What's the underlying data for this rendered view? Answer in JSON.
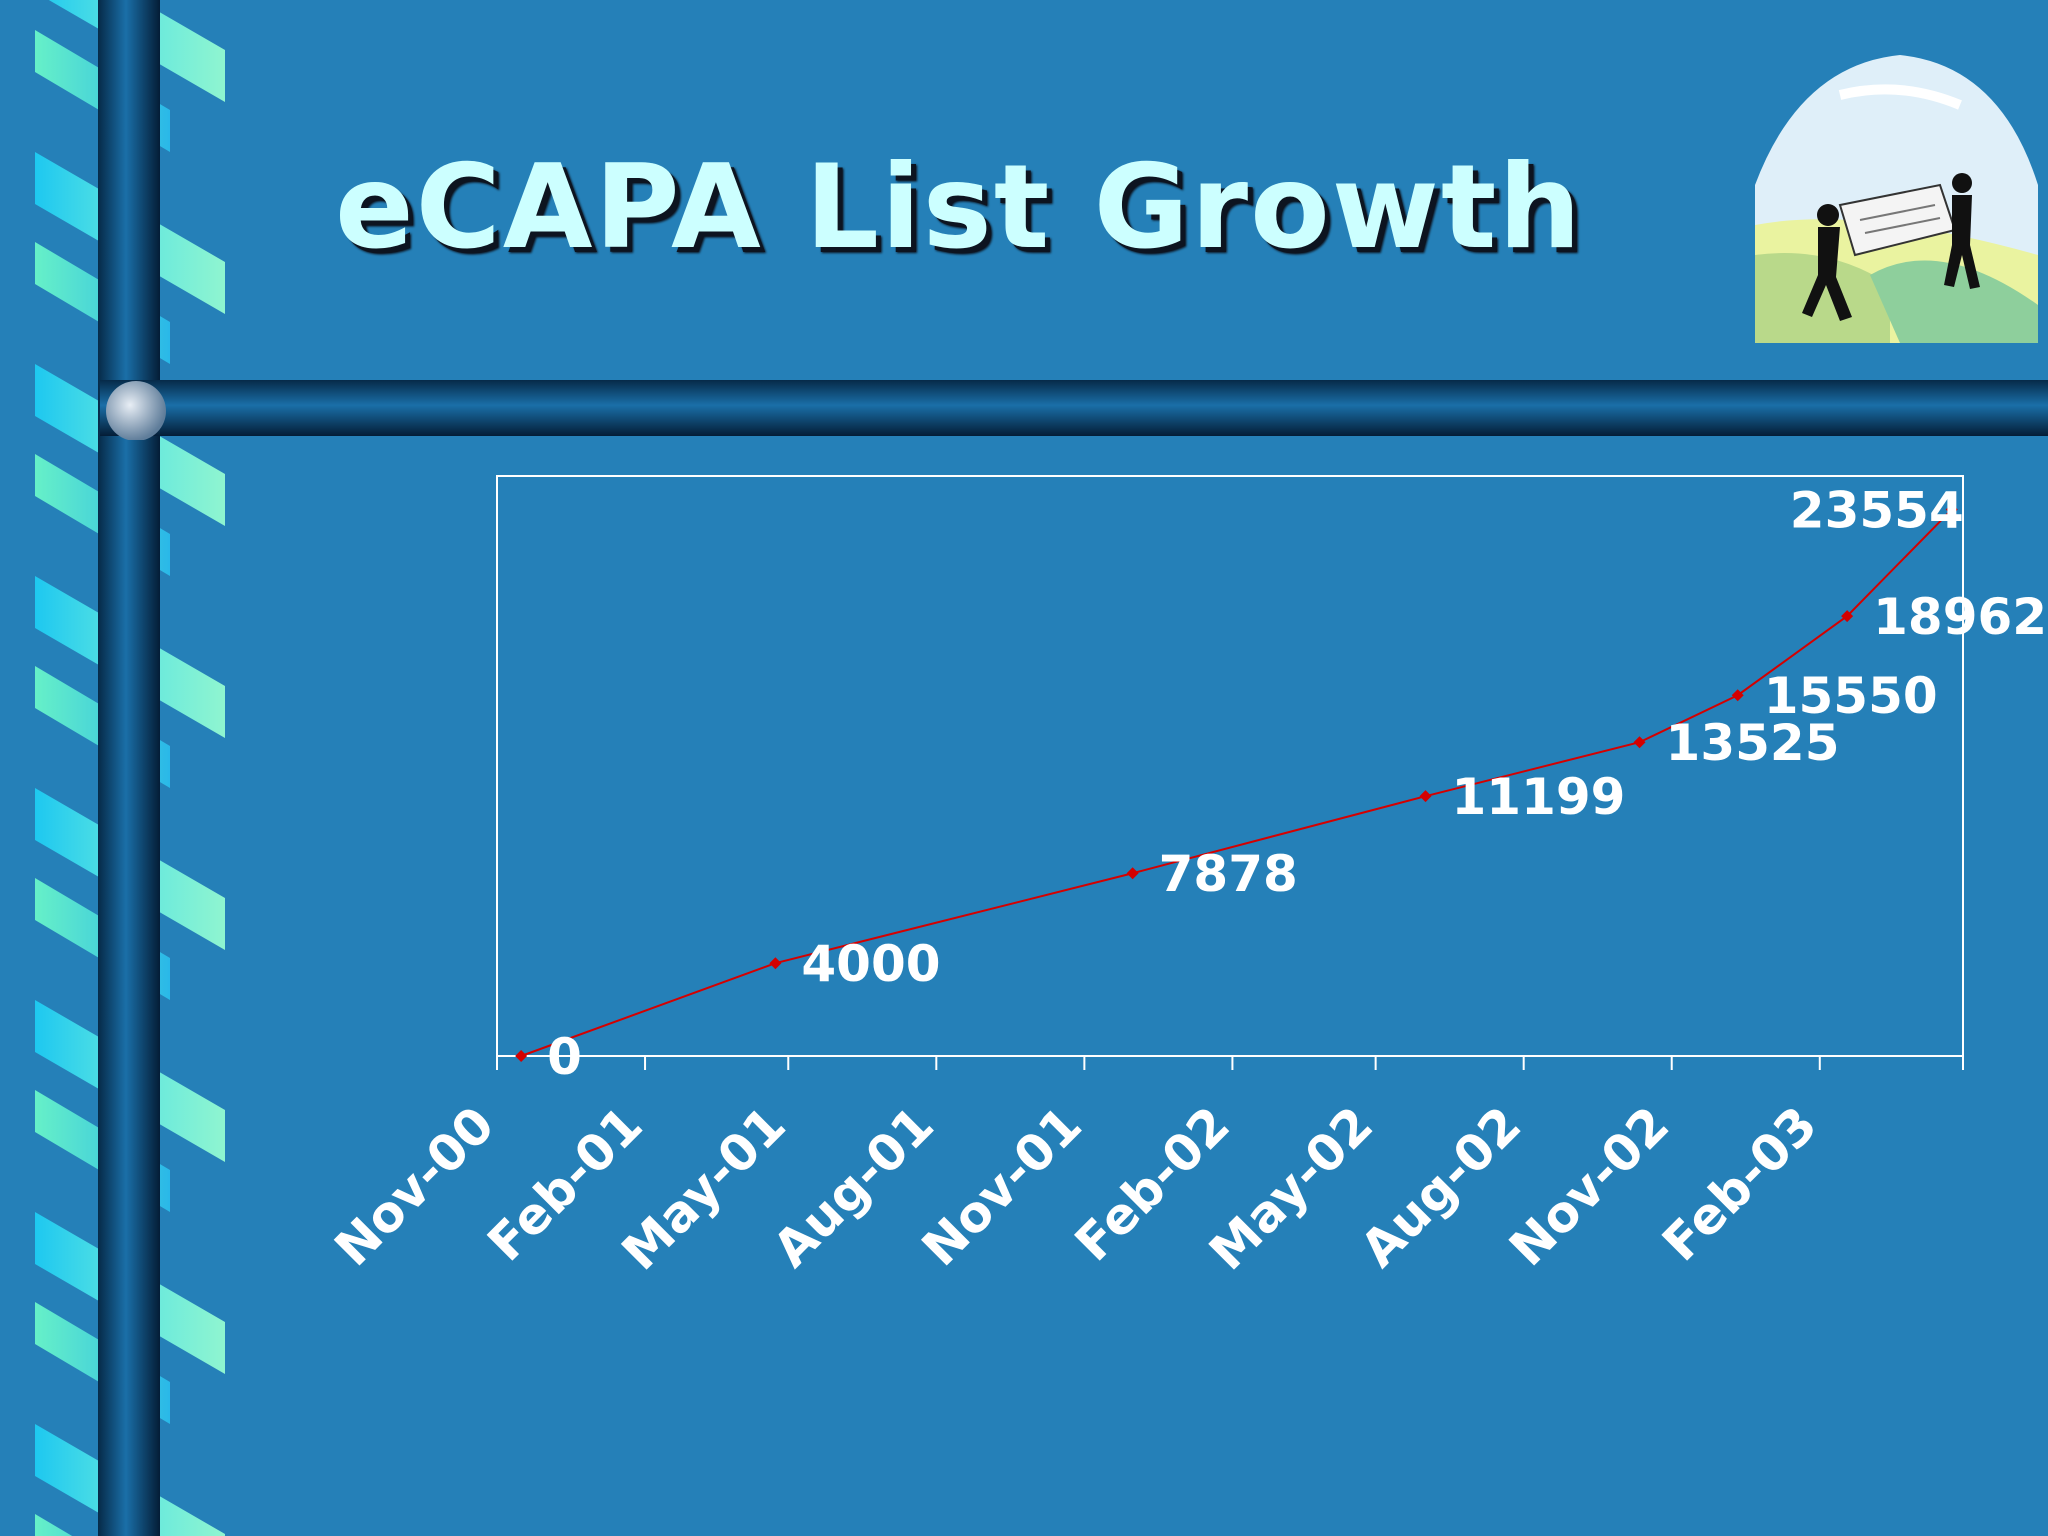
{
  "slide": {
    "title": "eCAPA List Growth",
    "colors": {
      "background": "#2580b8",
      "title": "#ccffff",
      "title_shadow": "#0d1420",
      "series_line": "#d40000",
      "axis": "#ffffff",
      "label": "#ffffff"
    },
    "decorations": {
      "ribbon": "twisted-ribbon-border",
      "rail": "horizontal-rail",
      "clipart": "two-people-carrying-document-clipart"
    }
  },
  "chart_data": {
    "type": "line",
    "title": "",
    "xlabel": "",
    "ylabel": "",
    "x_tick_labels": [
      "Nov-00",
      "Feb-01",
      "May-01",
      "Aug-01",
      "Nov-01",
      "Feb-02",
      "May-02",
      "Aug-02",
      "Nov-02",
      "Feb-03"
    ],
    "x_tick_dates": [
      "2000-11-01",
      "2001-02-01",
      "2001-05-01",
      "2001-08-01",
      "2001-11-01",
      "2002-02-01",
      "2002-05-01",
      "2002-08-01",
      "2002-11-01",
      "2003-02-01"
    ],
    "xlim": [
      "2000-11-01",
      "2003-05-01"
    ],
    "ylim": [
      0,
      25000
    ],
    "grid": false,
    "legend": "none",
    "series": [
      {
        "points": [
          {
            "x": "2000-11-16",
            "y": 0,
            "label": "0"
          },
          {
            "x": "2001-04-23",
            "y": 4000,
            "label": "4000"
          },
          {
            "x": "2001-12-01",
            "y": 7878,
            "label": "7878"
          },
          {
            "x": "2002-06-01",
            "y": 11199,
            "label": "11199"
          },
          {
            "x": "2002-10-12",
            "y": 13525,
            "label": "13525"
          },
          {
            "x": "2002-12-12",
            "y": 15550,
            "label": "15550"
          },
          {
            "x": "2003-02-18",
            "y": 18962,
            "label": "18962"
          },
          {
            "x": "2003-04-24",
            "y": 23554,
            "label": "23554"
          }
        ]
      }
    ]
  }
}
